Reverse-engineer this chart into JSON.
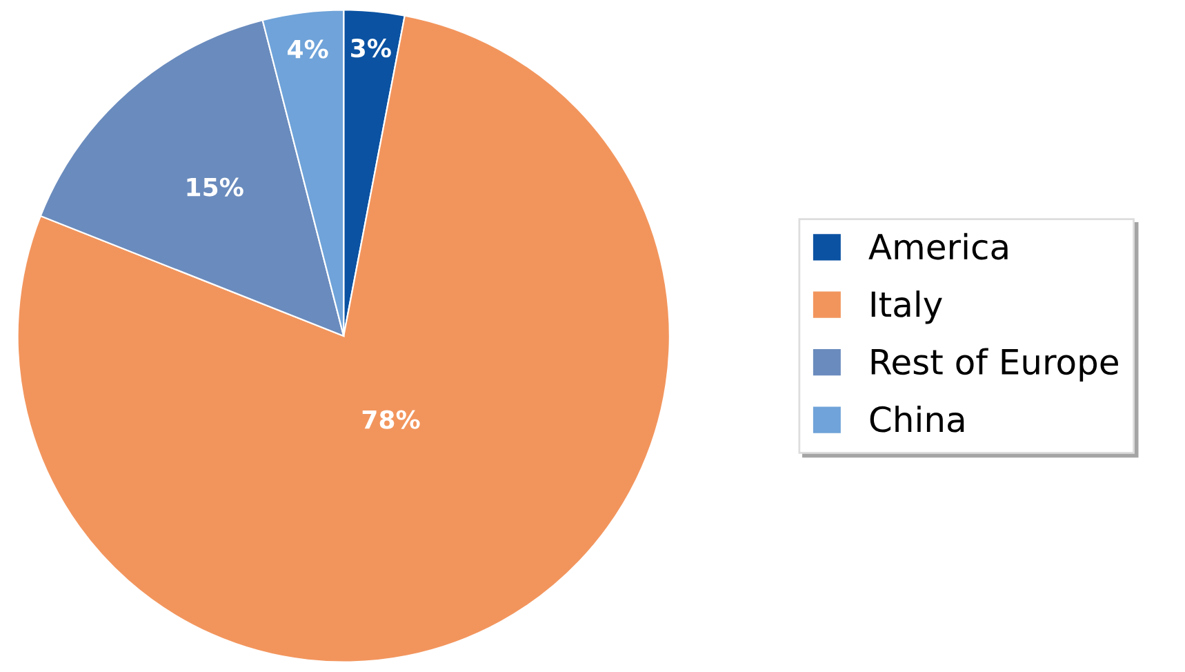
{
  "chart_data": {
    "type": "pie",
    "categories": [
      "America",
      "Italy",
      "Rest of Europe",
      "China"
    ],
    "values": [
      3,
      78,
      15,
      4
    ],
    "colors": [
      "#0b52a2",
      "#f2955d",
      "#6a8bbd",
      "#6fa3d9"
    ],
    "value_labels": [
      "3%",
      "78%",
      "15%",
      "4%"
    ],
    "legend": "right"
  }
}
